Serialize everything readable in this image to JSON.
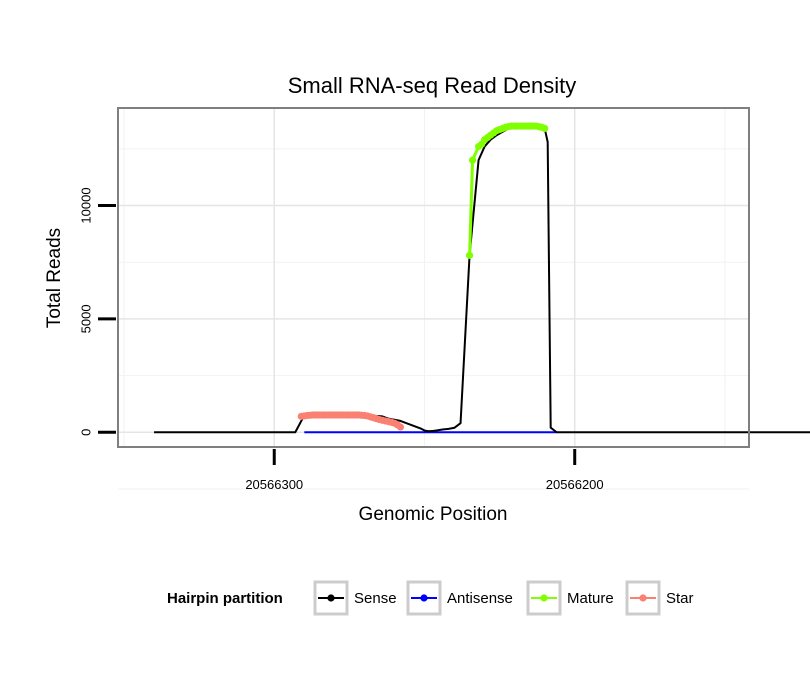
{
  "chart_data": {
    "type": "line",
    "title": "Small RNA-seq Read Density",
    "xlabel": "Genomic Position",
    "ylabel": "Total Reads",
    "xlim": [
      20566352,
      20566142
    ],
    "ylim": [
      -650,
      14300
    ],
    "x_reversed": true,
    "grid": true,
    "x_ticks": [
      20566300,
      20566200
    ],
    "x_tick_labels": [
      "20566300",
      "20566200"
    ],
    "y_ticks": [
      0,
      5000,
      10000
    ],
    "y_tick_labels": [
      "0",
      "5000",
      "10000"
    ],
    "legend": {
      "title": "Hairpin partition",
      "position": "bottom",
      "entries": [
        "Sense",
        "Antisense",
        "Mature",
        "Star"
      ]
    },
    "colors": {
      "Sense": "#000000",
      "Antisense": "#0000ff",
      "Mature": "#7fff00",
      "Star": "#fa8072"
    },
    "series": [
      {
        "name": "Sense",
        "x": [
          20566340,
          20566293,
          20566291,
          20566290,
          20566269,
          20566264,
          20566262,
          20566258,
          20566254,
          20566251,
          20566250,
          20566249,
          20566248,
          20566247,
          20566246,
          20566245,
          20566244,
          20566242,
          20566240,
          20566238,
          20566235,
          20566232,
          20566230,
          20566228,
          20566226,
          20566224,
          20566222,
          20566220,
          20566218,
          20566216,
          20566214,
          20566212,
          20566210,
          20566209,
          20566208,
          20566206,
          20566087
        ],
        "y": [
          0,
          0,
          500,
          750,
          750,
          700,
          600,
          500,
          300,
          150,
          80,
          50,
          50,
          60,
          80,
          100,
          120,
          150,
          200,
          400,
          7800,
          12000,
          12600,
          12900,
          13100,
          13250,
          13400,
          13480,
          13500,
          13500,
          13500,
          13480,
          13400,
          12800,
          200,
          0,
          0
        ]
      },
      {
        "name": "Antisense",
        "x": [
          20566290,
          20566206
        ],
        "y": [
          0,
          0
        ]
      },
      {
        "name": "Mature",
        "x": [
          20566235,
          20566234,
          20566232,
          20566231,
          20566230,
          20566229,
          20566228,
          20566227,
          20566226,
          20566225,
          20566224,
          20566223,
          20566222,
          20566221,
          20566220,
          20566219,
          20566218,
          20566217,
          20566216,
          20566215,
          20566214,
          20566213,
          20566212,
          20566211,
          20566210
        ],
        "y": [
          7800,
          12000,
          12600,
          12700,
          12900,
          13000,
          13100,
          13200,
          13300,
          13350,
          13400,
          13450,
          13480,
          13500,
          13500,
          13500,
          13500,
          13500,
          13500,
          13500,
          13500,
          13500,
          13480,
          13450,
          13400
        ]
      },
      {
        "name": "Star",
        "x": [
          20566291,
          20566290,
          20566289,
          20566288,
          20566287,
          20566286,
          20566285,
          20566284,
          20566283,
          20566282,
          20566281,
          20566280,
          20566279,
          20566278,
          20566277,
          20566276,
          20566275,
          20566274,
          20566273,
          20566272,
          20566271,
          20566270,
          20566269,
          20566268,
          20566267,
          20566266,
          20566265,
          20566264,
          20566263,
          20566262,
          20566261,
          20566260,
          20566259,
          20566258
        ],
        "y": [
          700,
          720,
          740,
          750,
          760,
          760,
          760,
          760,
          760,
          760,
          760,
          760,
          760,
          760,
          760,
          760,
          760,
          760,
          760,
          760,
          750,
          740,
          720,
          680,
          640,
          600,
          560,
          530,
          500,
          470,
          440,
          400,
          330,
          230
        ]
      }
    ]
  }
}
